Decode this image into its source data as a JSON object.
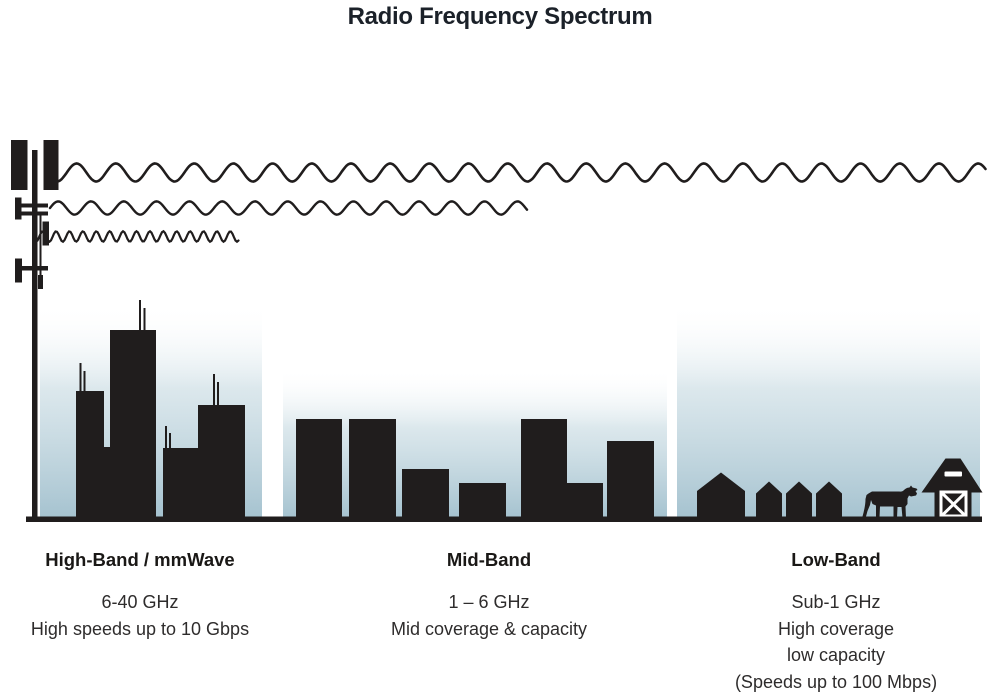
{
  "title": "Radio Frequency Spectrum",
  "colors": {
    "ink": "#201d1d",
    "title_text": "#1b2129",
    "body_text": "#2e2c2c",
    "sky_gradient_bottom": "#a6c3d0",
    "sky_gradient_mid": "#d3e2e8",
    "background": "#ffffff"
  },
  "illustration": {
    "tower": "cell-tower-icon",
    "waves": [
      {
        "name": "long-wave-low-band",
        "relative_wavelength": "long",
        "reach": "full-width"
      },
      {
        "name": "medium-wave-mid-band",
        "relative_wavelength": "medium",
        "reach": "middle"
      },
      {
        "name": "short-wave-high-band",
        "relative_wavelength": "short",
        "reach": "short"
      }
    ],
    "scenes": [
      "city-skyline",
      "town-buildings",
      "rural-houses-cow-barn"
    ]
  },
  "bands": [
    {
      "id": "high",
      "label": "High-Band / mmWave",
      "frequency": "6-40 GHz",
      "description_lines": [
        "High speeds up to 10 Gbps"
      ],
      "scene": "city-skyline"
    },
    {
      "id": "mid",
      "label": "Mid-Band",
      "frequency": "1 – 6 GHz",
      "description_lines": [
        "Mid coverage & capacity"
      ],
      "scene": "town-buildings"
    },
    {
      "id": "low",
      "label": "Low-Band",
      "frequency": "Sub-1 GHz",
      "description_lines": [
        "High coverage",
        "low capacity",
        "(Speeds up to 100 Mbps)"
      ],
      "scene": "rural-houses-cow-barn"
    }
  ]
}
